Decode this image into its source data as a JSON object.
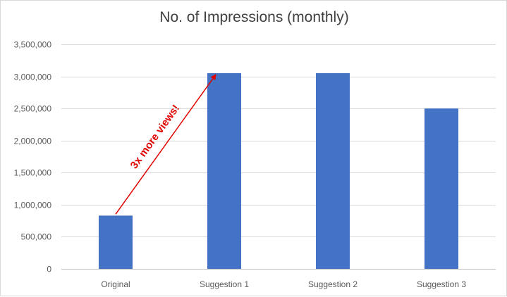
{
  "chart_data": {
    "type": "bar",
    "title": "No. of Impressions (monthly)",
    "categories": [
      "Original",
      "Suggestion 1",
      "Suggestion 2",
      "Suggestion 3"
    ],
    "values": [
      830000,
      3050000,
      3050000,
      2500000
    ],
    "ylim": [
      0,
      3500000
    ],
    "yticks": [
      0,
      500000,
      1000000,
      1500000,
      2000000,
      2500000,
      3000000,
      3500000
    ],
    "ytick_labels": [
      "0",
      "500,000",
      "1,000,000",
      "1,500,000",
      "2,000,000",
      "2,500,000",
      "3,000,000",
      "3,500,000"
    ],
    "grid": "horizontal",
    "bar_color": "#4472c4",
    "legend": "none",
    "annotation": {
      "text": "3x more views!",
      "color": "#e00000",
      "from": {
        "category": "Original",
        "value": 830000
      },
      "to": {
        "category": "Suggestion 1",
        "value": 3050000
      }
    }
  }
}
